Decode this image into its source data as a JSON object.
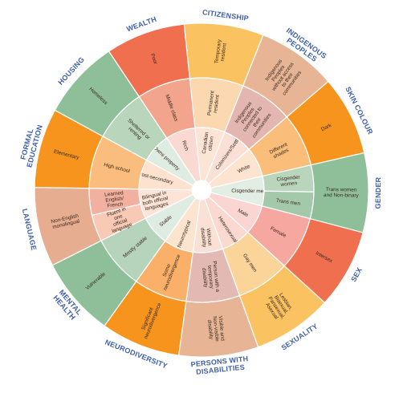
{
  "diagram": {
    "center_color": "#ffffff",
    "ring_colors": {
      "ring1": "#fde3e0",
      "orange_light": "#fbd9ac",
      "orange_mid": "#fbb98a",
      "orange_strong": "#f7941d",
      "peach": "#f8c8a6",
      "salmon": "#f2a48c",
      "red": "#ef6f4e",
      "gold": "#fbc262",
      "tan": "#e7b596",
      "mauve": "#d9b0ad",
      "green_light": "#c8dccb",
      "green_mid": "#a4c9aa",
      "green_strong": "#8fbf99",
      "pink": "#f6b3b3"
    },
    "sectors": [
      {
        "category": "CITIZENSHIP",
        "inner": "Canadian citizen",
        "middle": "Permanent resident",
        "outer": "Temporary resident",
        "colors": [
          "#fde5d6",
          "#fbd8b0",
          "#fbc262"
        ]
      },
      {
        "category": "INDIGENOUS PEOPLES",
        "inner": "Colonizers/Settlers",
        "middle": "Indigenous Peoples connected to their communities",
        "outer": "Indigenous Peoples without access to their communities",
        "colors": [
          "#fbe0d8",
          "#e3b7b0",
          "#e7b596"
        ]
      },
      {
        "category": "SKIN COLOUR",
        "inner": "White",
        "middle": "Different shades",
        "outer": "Dark",
        "colors": [
          "#fde4d0",
          "#fbbd7a",
          "#f7941d"
        ]
      },
      {
        "category": "GENDER",
        "inner": "Cisgender men",
        "middle": "Cisgender women",
        "middle2": "Trans men",
        "outer": "Trans women and Non-binary",
        "colors": [
          "#e2ede3",
          "#b9d6bd",
          "#a4c9aa",
          "#8fbf99"
        ]
      },
      {
        "category": "SEX",
        "inner": "Male",
        "middle": "Female",
        "outer": "Intersex",
        "colors": [
          "#fbd5d2",
          "#f6a7a0",
          "#ef6f4e"
        ]
      },
      {
        "category": "SEXUALITY",
        "inner": "Heterosexual",
        "middle": "Gay men",
        "outer": "Lesbian, Bisexual, Pansexual, Asexual",
        "colors": [
          "#fbd9d0",
          "#fbd49a",
          "#fbc262"
        ]
      },
      {
        "category": "PERSONS WITH DISABILITIES",
        "inner": "Without disability",
        "middle": "Person with a temporary disability",
        "outer": "Visible and Non-visible disability",
        "colors": [
          "#fbe0d6",
          "#e3bab3",
          "#e7b596"
        ]
      },
      {
        "category": "NEURODIVERSITY",
        "inner": "Neurotypical",
        "middle": "Some neurodivergence",
        "outer": "Significant neurodivergence",
        "colors": [
          "#fde4cf",
          "#fbb06a",
          "#f7941d"
        ]
      },
      {
        "category": "MENTAL HEALTH",
        "inner": "Stable",
        "middle": "Mostly stable",
        "outer": "Vulnerable",
        "colors": [
          "#dfece1",
          "#b6d3bb",
          "#8fbf99"
        ]
      },
      {
        "category": "LANGUAGE",
        "inner": "Bilingual in both official languages",
        "middle": "Fluent in one official language",
        "middle2": "Learned English/ French",
        "outer": "Non-English monolingual",
        "colors": [
          "#fde4d6",
          "#f8c9b4",
          "#f2b1a0",
          "#e7ad90"
        ]
      },
      {
        "category": "FORMAL EDUCATION",
        "inner": "Post-secondary",
        "middle": "High school",
        "outer": "Elementary",
        "colors": [
          "#fde3cf",
          "#fbbd7e",
          "#f7941d"
        ]
      },
      {
        "category": "HOUSING",
        "inner": "Owns property",
        "middle": "Sheltered or renting",
        "outer": "Homeless",
        "colors": [
          "#dfece1",
          "#b9d6bd",
          "#8fbf99"
        ]
      },
      {
        "category": "WEALTH",
        "inner": "Rich",
        "middle": "Middle class",
        "outer": "Poor",
        "colors": [
          "#fbd9d3",
          "#f2a48c",
          "#ef6f4e"
        ]
      }
    ]
  }
}
